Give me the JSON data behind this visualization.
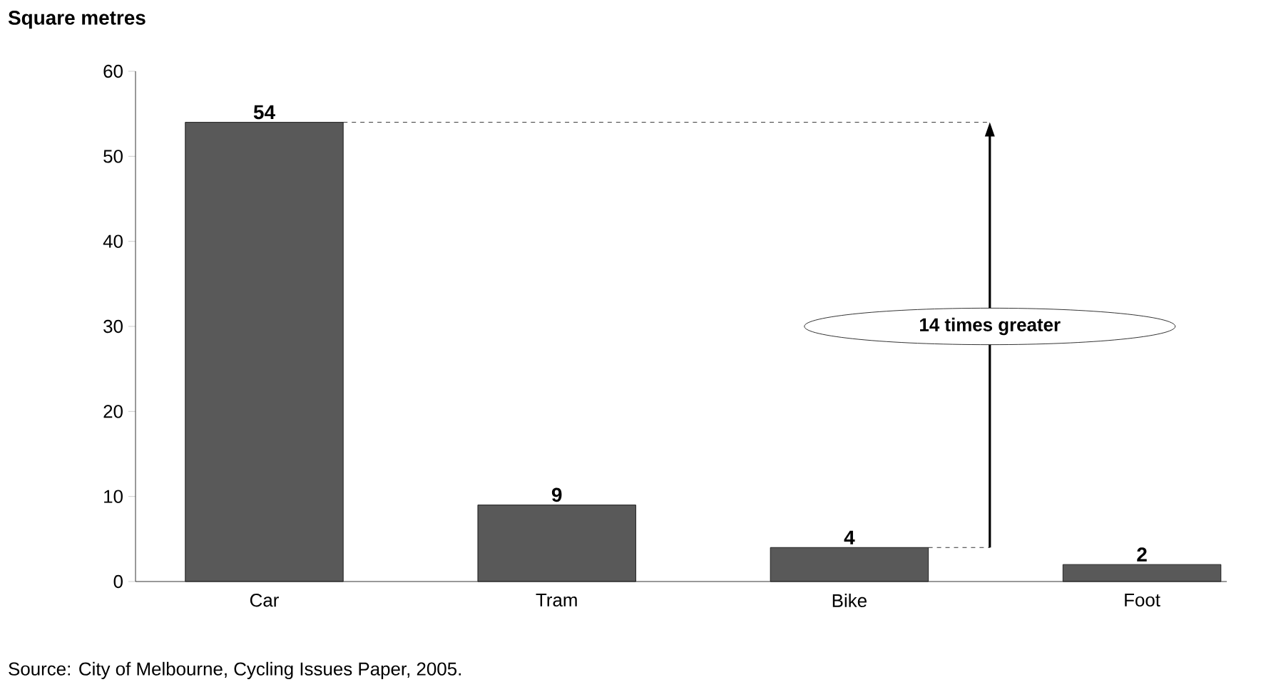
{
  "chart_data": {
    "type": "bar",
    "ylabel": "Square metres",
    "categories": [
      "Car",
      "Tram",
      "Bike",
      "Foot"
    ],
    "values": [
      54,
      9,
      4,
      2
    ],
    "color": "#595959",
    "ylim": [
      0,
      60
    ],
    "yticks": [
      0,
      10,
      20,
      30,
      40,
      50,
      60
    ],
    "data_labels": true,
    "grid": false,
    "ref_lines": [
      {
        "axis": "y",
        "value": 54,
        "line_style": "dashed"
      }
    ],
    "annotations": [
      "14 times greater",
      "Source: City of Melbourne, Cycling Issues Paper, 2005."
    ]
  }
}
